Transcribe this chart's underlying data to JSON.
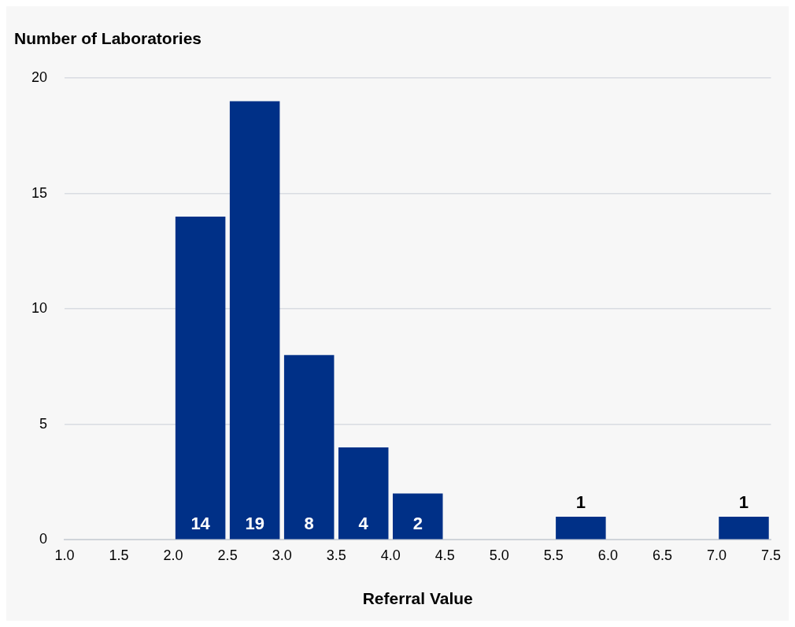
{
  "chart_data": {
    "type": "histogram",
    "ylabel": "Number of Laboratories",
    "xlabel": "Referral Value",
    "bins": [
      1.0,
      1.5,
      2.0,
      2.5,
      3.0,
      3.5,
      4.0,
      4.5,
      5.0,
      5.5,
      6.0,
      6.5,
      7.0,
      7.5
    ],
    "values": [
      0,
      0,
      14,
      19,
      8,
      4,
      2,
      0,
      0,
      1,
      0,
      0,
      1
    ],
    "value_labels": [
      null,
      null,
      "14",
      "19",
      "8",
      "4",
      "2",
      null,
      null,
      "1",
      null,
      null,
      "1"
    ],
    "color": "#003087",
    "xlim": [
      1.0,
      7.5
    ],
    "xticks": [
      {
        "value": 1.0,
        "label": "1.0"
      },
      {
        "value": 1.5,
        "label": "1.5"
      },
      {
        "value": 2.0,
        "label": "2.0"
      },
      {
        "value": 2.5,
        "label": "2.5"
      },
      {
        "value": 3.0,
        "label": "3.0"
      },
      {
        "value": 3.5,
        "label": "3.5"
      },
      {
        "value": 4.0,
        "label": "4.0"
      },
      {
        "value": 4.5,
        "label": "4.5"
      },
      {
        "value": 5.0,
        "label": "5.0"
      },
      {
        "value": 5.5,
        "label": "5.5"
      },
      {
        "value": 6.0,
        "label": "6.0"
      },
      {
        "value": 6.5,
        "label": "6.5"
      },
      {
        "value": 7.0,
        "label": "7.0"
      },
      {
        "value": 7.5,
        "label": "7.5"
      }
    ],
    "ylim": [
      0,
      20
    ],
    "yticks": [
      0,
      5,
      10,
      15,
      20
    ],
    "grid": "y",
    "legend": false
  }
}
